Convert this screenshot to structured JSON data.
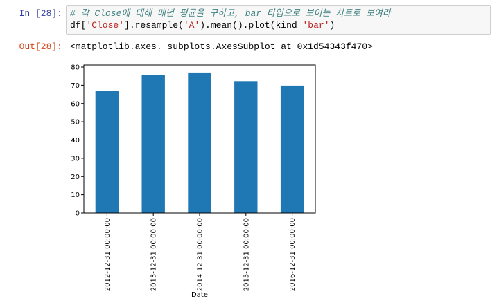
{
  "cell": {
    "in_prompt": "In [28]:",
    "out_prompt": "Out[28]:",
    "code": {
      "comment": "# 각 Close에 대해 매년 평균을 구하고, bar 타입으로 보이는 차트로 보여라",
      "l2_a": "df[",
      "l2_s1": "'Close'",
      "l2_b": "].resample(",
      "l2_s2": "'A'",
      "l2_c": ").mean().plot(kind=",
      "l2_s3": "'bar'",
      "l2_d": ")"
    },
    "output_text": "<matplotlib.axes._subplots.AxesSubplot at 0x1d54343f470>"
  },
  "chart_data": {
    "type": "bar",
    "categories": [
      "2012-12-31 00:00:00",
      "2013-12-31 00:00:00",
      "2014-12-31 00:00:00",
      "2015-12-31 00:00:00",
      "2016-12-31 00:00:00"
    ],
    "values": [
      67,
      75.5,
      77,
      72.3,
      69.8
    ],
    "xlabel": "Date",
    "ylabel": "",
    "ylim": [
      0,
      80
    ],
    "yticks": [
      0,
      10,
      20,
      30,
      40,
      50,
      60,
      70,
      80
    ],
    "bar_color": "#1f77b4",
    "grid": false
  }
}
